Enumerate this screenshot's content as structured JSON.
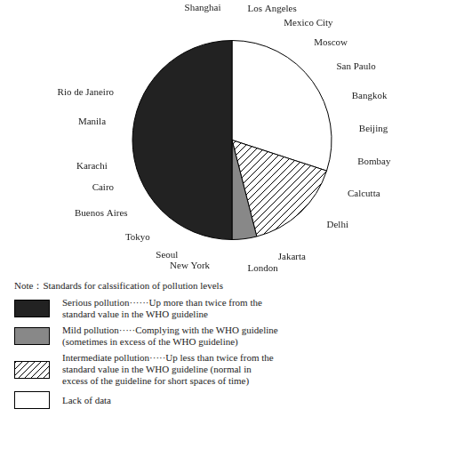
{
  "chart_data": {
    "type": "pie",
    "categories": [
      [
        "Lack of data"
      ],
      [
        "Intermediate pollution·····Up less than twice from the",
        "standard value in the WHO guideline (normal in",
        "excess of the guideline for short spaces of time)"
      ],
      [
        "Mild pollution·····Complying with the WHO guideline",
        "(sometimes in excess of the WHO guideline)"
      ],
      [
        "Serious pollution······Up more than twice from the",
        "standard value in the WHO guideline"
      ]
    ],
    "values": [
      30,
      16,
      4,
      50
    ],
    "colors": [
      "#ffffff",
      "#ffffff",
      "#888888",
      "#222222"
    ],
    "subtitle": "Note：Standards for calssification of pollution levels",
    "annotations": [
      "Shanghai",
      "Los Angeles",
      "Mexico City",
      "Moscow",
      "San Paulo",
      "Bangkok",
      "Beijing",
      "Bombay",
      "Calcutta",
      "Delhi",
      "Jakarta",
      "London",
      "New York",
      "Seoul",
      "Tokyo",
      "Buenos Aires",
      "Cairo",
      "Karachi",
      "Manila",
      "Rio de Janeiro"
    ],
    "legend": "bottom"
  }
}
